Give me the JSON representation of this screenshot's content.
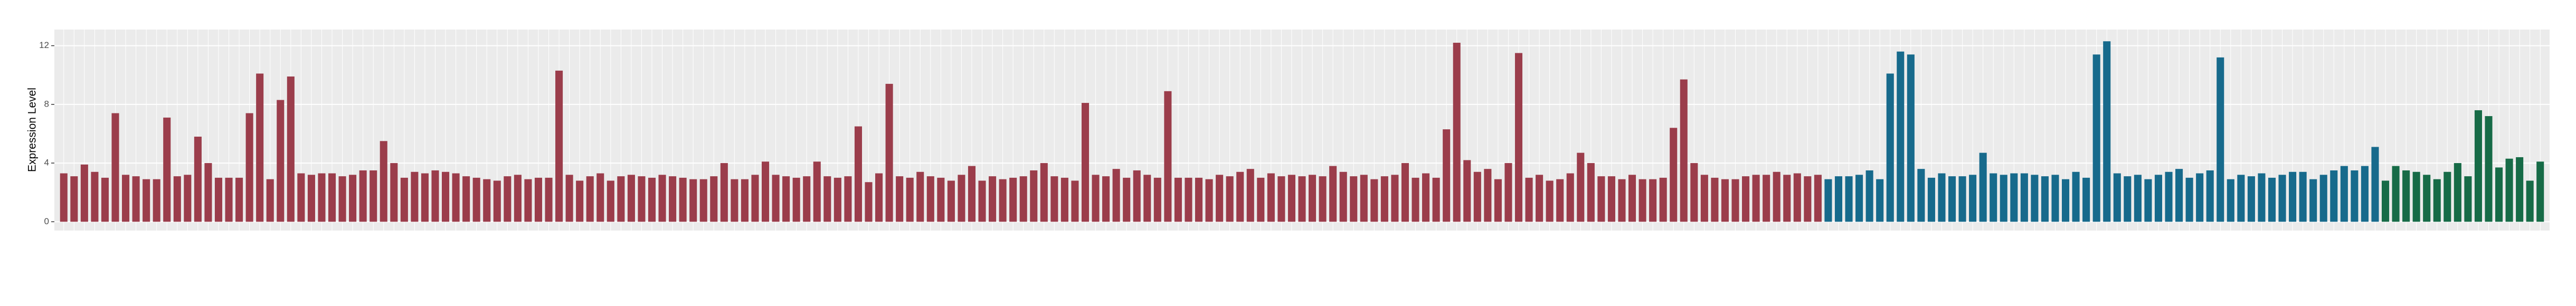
{
  "chart_data": {
    "type": "bar",
    "y_label": "Expression Level",
    "ylim": [
      -0.6,
      13.1
    ],
    "yticks": [
      0,
      4,
      8,
      12
    ],
    "grid": true,
    "series": [
      {
        "color": "#9b3d4b",
        "categories": [
          null,
          null,
          null,
          null,
          null,
          null,
          null,
          null,
          null,
          null,
          null,
          null,
          null,
          null,
          null,
          null,
          null,
          null,
          null,
          null,
          null,
          null,
          null,
          null,
          null,
          null,
          null,
          null,
          null,
          null,
          null,
          null,
          null,
          null,
          null,
          null,
          null,
          null,
          null,
          null,
          null,
          null,
          null,
          null,
          null,
          null,
          null,
          null,
          null,
          null,
          null,
          null,
          null,
          null,
          null,
          null,
          null,
          null,
          null,
          null,
          null,
          null,
          null,
          null,
          null,
          null,
          null,
          null,
          null,
          null,
          null,
          null,
          null,
          null,
          null,
          null,
          null,
          null,
          null,
          null,
          null,
          null,
          null,
          null,
          null,
          null,
          null,
          null,
          null,
          null,
          null,
          null,
          null,
          null,
          null,
          null,
          null,
          null,
          null,
          null,
          null,
          null,
          null,
          null,
          null,
          null,
          null,
          null,
          null,
          null,
          null,
          null,
          null,
          null,
          null,
          null,
          null,
          null,
          null,
          null,
          null,
          null,
          null,
          null,
          null,
          null,
          null,
          null,
          null,
          null,
          null,
          null,
          null,
          null,
          null,
          null,
          null,
          null,
          null,
          null,
          null,
          null,
          null,
          null,
          null,
          null,
          null,
          null,
          null,
          null,
          null,
          null,
          null,
          null,
          null,
          null,
          null,
          null,
          null,
          null,
          null,
          null,
          null,
          null,
          null,
          null,
          null,
          null,
          null,
          null,
          null
        ],
        "values": [
          3.3,
          3.1,
          3.9,
          3.4,
          3.0,
          7.4,
          3.2,
          3.1,
          2.9,
          2.9,
          7.1,
          3.1,
          3.2,
          5.8,
          4.0,
          3.0,
          3.0,
          3.0,
          7.4,
          10.1,
          2.9,
          8.3,
          9.9,
          3.3,
          3.2,
          3.3,
          3.3,
          3.1,
          3.2,
          3.5,
          3.5,
          5.5,
          4.0,
          3.0,
          3.4,
          3.3,
          3.5,
          3.4,
          3.3,
          3.1,
          3.0,
          2.9,
          2.8,
          3.1,
          3.2,
          2.9,
          3.0,
          3.0,
          10.3,
          3.2,
          2.8,
          3.1,
          3.3,
          2.8,
          3.1,
          3.2,
          3.1,
          3.0,
          3.2,
          3.1,
          3.0,
          2.9,
          2.9,
          3.1,
          4.0,
          2.9,
          2.9,
          3.2,
          4.1,
          3.2,
          3.1,
          3.0,
          3.1,
          4.1,
          3.1,
          3.0,
          3.1,
          6.5,
          2.7,
          3.3,
          9.4,
          3.1,
          3.0,
          3.4,
          3.1,
          3.0,
          2.8,
          3.2,
          3.8,
          2.8,
          3.1,
          2.9,
          3.0,
          3.1,
          3.5,
          4.0,
          3.1,
          3.0,
          2.8,
          8.1,
          3.2,
          3.1,
          3.6,
          3.0,
          3.5,
          3.2,
          3.0,
          8.9,
          3.0,
          3.0,
          3.0,
          2.9,
          3.2,
          3.1,
          3.4,
          3.6,
          3.0,
          3.3,
          3.1,
          3.2,
          3.1,
          3.2,
          3.1,
          3.8,
          3.4,
          3.1,
          3.2,
          2.9,
          3.1,
          3.2,
          4.0,
          3.0,
          3.3,
          3.0,
          6.3,
          12.2,
          4.2,
          3.4,
          3.6,
          2.9,
          4.0,
          11.5,
          3.0,
          3.2,
          2.8,
          2.9,
          3.3,
          4.7,
          4.0,
          3.1,
          3.1,
          2.9,
          3.2,
          2.9,
          2.9,
          3.0,
          6.4,
          9.7,
          4.0,
          3.2,
          3.0,
          2.9,
          2.9,
          3.1,
          3.2,
          3.2,
          3.4,
          3.2,
          3.3,
          3.1,
          3.2
        ]
      },
      {
        "color": "#176a8c",
        "categories": [
          null,
          null,
          null,
          null,
          null,
          null,
          null,
          null,
          null,
          null,
          null,
          null,
          null,
          null,
          null,
          null,
          null,
          null,
          null,
          null,
          null,
          null,
          null,
          null,
          null,
          null,
          null,
          null,
          null,
          null,
          null,
          null,
          null,
          null,
          null,
          null,
          null,
          null,
          null,
          null,
          null,
          null,
          null,
          null,
          null,
          null,
          null,
          null,
          null,
          null,
          null,
          null,
          null,
          null
        ],
        "values": [
          2.9,
          3.1,
          3.1,
          3.2,
          3.5,
          2.9,
          10.1,
          11.6,
          11.4,
          3.6,
          3.0,
          3.3,
          3.1,
          3.1,
          3.2,
          4.7,
          3.3,
          3.2,
          3.3,
          3.3,
          3.2,
          3.1,
          3.2,
          2.9,
          3.4,
          3.0,
          11.4,
          12.3,
          3.3,
          3.1,
          3.2,
          2.9,
          3.2,
          3.4,
          3.6,
          3.0,
          3.3,
          3.5,
          11.2,
          2.9,
          3.2,
          3.1,
          3.3,
          3.0,
          3.2,
          3.4,
          3.4,
          2.9,
          3.2,
          3.5,
          3.8,
          3.5,
          3.8,
          5.1
        ]
      },
      {
        "color": "#176b47",
        "categories": [
          null,
          null,
          null,
          null,
          null,
          null,
          null,
          null,
          null,
          null,
          null,
          null,
          null,
          null,
          null,
          null
        ],
        "values": [
          2.8,
          3.8,
          3.5,
          3.4,
          3.2,
          2.9,
          3.4,
          4.0,
          3.1,
          7.6,
          7.2,
          3.7,
          4.3,
          4.4,
          2.8,
          4.1
        ]
      }
    ]
  }
}
